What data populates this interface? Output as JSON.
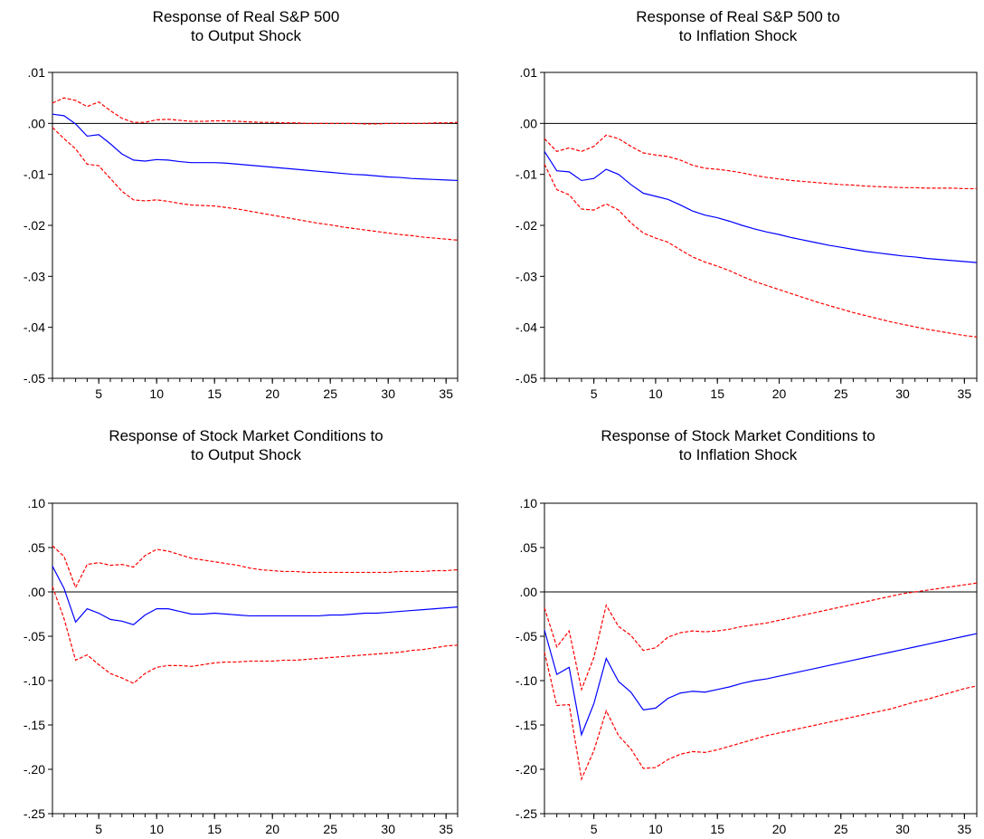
{
  "chart_data": [
    {
      "type": "line",
      "title_lines": [
        "Response of Real S&P 500",
        "to Output Shock"
      ],
      "xlim": [
        1,
        36
      ],
      "ylim": [
        -0.05,
        0.01
      ],
      "xticks": [
        5,
        10,
        15,
        20,
        25,
        30,
        35
      ],
      "xtick_labels": [
        "5",
        "10",
        "15",
        "20",
        "25",
        "30",
        "35"
      ],
      "yticks": [
        0.01,
        0.0,
        -0.01,
        -0.02,
        -0.03,
        -0.04,
        -0.05
      ],
      "ytick_labels": [
        ".01",
        ".00",
        "-.01",
        "-.02",
        "-.03",
        "-.04",
        "-.05"
      ],
      "zero_line": true,
      "series": [
        {
          "style": "solid",
          "color": "#0000ff",
          "values": [
            0.0018,
            0.0015,
            -0.0001,
            -0.0025,
            -0.0022,
            -0.004,
            -0.006,
            -0.0072,
            -0.0074,
            -0.0071,
            -0.0072,
            -0.0075,
            -0.0077,
            -0.0077,
            -0.0077,
            -0.0078,
            -0.008,
            -0.0082,
            -0.0084,
            -0.0086,
            -0.0088,
            -0.009,
            -0.0092,
            -0.0094,
            -0.0096,
            -0.0098,
            -0.01,
            -0.0101,
            -0.0103,
            -0.0105,
            -0.0106,
            -0.0108,
            -0.0109,
            -0.011,
            -0.0111,
            -0.0112
          ]
        },
        {
          "style": "dashed",
          "color": "#ff0000",
          "values": [
            0.004,
            0.005,
            0.0045,
            0.0033,
            0.0042,
            0.0025,
            0.001,
            0.0002,
            0.0002,
            0.0007,
            0.0008,
            0.0006,
            0.0004,
            0.0004,
            0.0005,
            0.0005,
            0.0004,
            0.0003,
            0.0002,
            0.0002,
            0.0001,
            0.0001,
            0.0,
            0.0,
            0.0,
            0.0,
            0.0,
            -0.0001,
            -0.0001,
            0.0,
            0.0,
            0.0,
            0.0,
            0.0001,
            0.0001,
            0.0002
          ]
        },
        {
          "style": "dashed",
          "color": "#ff0000",
          "values": [
            -0.0008,
            -0.003,
            -0.005,
            -0.008,
            -0.0083,
            -0.0108,
            -0.0133,
            -0.015,
            -0.0152,
            -0.015,
            -0.0153,
            -0.0157,
            -0.016,
            -0.0161,
            -0.0162,
            -0.0165,
            -0.0168,
            -0.0172,
            -0.0176,
            -0.018,
            -0.0184,
            -0.0188,
            -0.0192,
            -0.0196,
            -0.0199,
            -0.0203,
            -0.0206,
            -0.0209,
            -0.0212,
            -0.0215,
            -0.0218,
            -0.022,
            -0.0223,
            -0.0225,
            -0.0227,
            -0.0229
          ]
        }
      ]
    },
    {
      "type": "line",
      "title_lines": [
        "Response of Real S&P 500 to",
        "to Inflation Shock"
      ],
      "xlim": [
        1,
        36
      ],
      "ylim": [
        -0.05,
        0.01
      ],
      "xticks": [
        5,
        10,
        15,
        20,
        25,
        30,
        35
      ],
      "xtick_labels": [
        "5",
        "10",
        "15",
        "20",
        "25",
        "30",
        "35"
      ],
      "yticks": [
        0.01,
        0.0,
        -0.01,
        -0.02,
        -0.03,
        -0.04,
        -0.05
      ],
      "ytick_labels": [
        ".01",
        ".00",
        "-.01",
        "-.02",
        "-.03",
        "-.04",
        "-.05"
      ],
      "zero_line": true,
      "series": [
        {
          "style": "solid",
          "color": "#0000ff",
          "values": [
            -0.0055,
            -0.0093,
            -0.0095,
            -0.0112,
            -0.0108,
            -0.009,
            -0.01,
            -0.012,
            -0.0137,
            -0.0143,
            -0.0149,
            -0.016,
            -0.0172,
            -0.018,
            -0.0185,
            -0.0192,
            -0.02,
            -0.0207,
            -0.0213,
            -0.0218,
            -0.0224,
            -0.0229,
            -0.0234,
            -0.0239,
            -0.0243,
            -0.0247,
            -0.0251,
            -0.0254,
            -0.0257,
            -0.026,
            -0.0262,
            -0.0265,
            -0.0267,
            -0.0269,
            -0.0271,
            -0.0273
          ]
        },
        {
          "style": "dashed",
          "color": "#ff0000",
          "values": [
            -0.003,
            -0.0055,
            -0.0048,
            -0.0055,
            -0.0045,
            -0.0023,
            -0.003,
            -0.0045,
            -0.0058,
            -0.0062,
            -0.0065,
            -0.0072,
            -0.0082,
            -0.0088,
            -0.009,
            -0.0093,
            -0.0097,
            -0.0102,
            -0.0106,
            -0.0109,
            -0.0112,
            -0.0114,
            -0.0116,
            -0.0118,
            -0.012,
            -0.0121,
            -0.0123,
            -0.0124,
            -0.0125,
            -0.0126,
            -0.0126,
            -0.0127,
            -0.0127,
            -0.0127,
            -0.0128,
            -0.0128
          ]
        },
        {
          "style": "dashed",
          "color": "#ff0000",
          "values": [
            -0.008,
            -0.013,
            -0.014,
            -0.0168,
            -0.017,
            -0.0158,
            -0.017,
            -0.0195,
            -0.0215,
            -0.0225,
            -0.0233,
            -0.0248,
            -0.0262,
            -0.0272,
            -0.028,
            -0.0289,
            -0.03,
            -0.031,
            -0.0318,
            -0.0326,
            -0.0334,
            -0.0342,
            -0.035,
            -0.0357,
            -0.0364,
            -0.0371,
            -0.0377,
            -0.0383,
            -0.0389,
            -0.0394,
            -0.0399,
            -0.0404,
            -0.0408,
            -0.0412,
            -0.0416,
            -0.0419
          ]
        }
      ]
    },
    {
      "type": "line",
      "title_lines": [
        "Response of Stock Market Conditions to",
        "to Output Shock"
      ],
      "xlim": [
        1,
        36
      ],
      "ylim": [
        -0.25,
        0.1
      ],
      "xticks": [
        5,
        10,
        15,
        20,
        25,
        30,
        35
      ],
      "xtick_labels": [
        "5",
        "10",
        "15",
        "20",
        "25",
        "30",
        "35"
      ],
      "yticks": [
        0.1,
        0.05,
        0.0,
        -0.05,
        -0.1,
        -0.15,
        -0.2,
        -0.25
      ],
      "ytick_labels": [
        ".10",
        ".05",
        ".00",
        "-.05",
        "-.10",
        "-.15",
        "-.20",
        "-.25"
      ],
      "zero_line": true,
      "series": [
        {
          "style": "solid",
          "color": "#0000ff",
          "values": [
            0.029,
            0.004,
            -0.034,
            -0.019,
            -0.024,
            -0.031,
            -0.033,
            -0.037,
            -0.026,
            -0.019,
            -0.019,
            -0.022,
            -0.025,
            -0.025,
            -0.024,
            -0.025,
            -0.026,
            -0.027,
            -0.027,
            -0.027,
            -0.027,
            -0.027,
            -0.027,
            -0.027,
            -0.026,
            -0.026,
            -0.025,
            -0.024,
            -0.024,
            -0.023,
            -0.022,
            -0.021,
            -0.02,
            -0.019,
            -0.018,
            -0.017
          ]
        },
        {
          "style": "dashed",
          "color": "#ff0000",
          "values": [
            0.052,
            0.04,
            0.005,
            0.031,
            0.033,
            0.03,
            0.031,
            0.028,
            0.041,
            0.048,
            0.046,
            0.042,
            0.038,
            0.036,
            0.034,
            0.032,
            0.03,
            0.027,
            0.025,
            0.024,
            0.023,
            0.023,
            0.022,
            0.022,
            0.022,
            0.022,
            0.022,
            0.022,
            0.022,
            0.022,
            0.023,
            0.023,
            0.023,
            0.024,
            0.024,
            0.025
          ]
        },
        {
          "style": "dashed",
          "color": "#ff0000",
          "values": [
            0.006,
            -0.03,
            -0.077,
            -0.071,
            -0.082,
            -0.092,
            -0.097,
            -0.103,
            -0.092,
            -0.085,
            -0.083,
            -0.083,
            -0.084,
            -0.082,
            -0.08,
            -0.079,
            -0.079,
            -0.078,
            -0.078,
            -0.078,
            -0.077,
            -0.077,
            -0.076,
            -0.075,
            -0.074,
            -0.073,
            -0.072,
            -0.071,
            -0.07,
            -0.069,
            -0.068,
            -0.066,
            -0.065,
            -0.063,
            -0.061,
            -0.06
          ]
        }
      ]
    },
    {
      "type": "line",
      "title_lines": [
        "Response of Stock Market Conditions to",
        "to Inflation Shock"
      ],
      "xlim": [
        1,
        36
      ],
      "ylim": [
        -0.25,
        0.1
      ],
      "xticks": [
        5,
        10,
        15,
        20,
        25,
        30,
        35
      ],
      "xtick_labels": [
        "5",
        "10",
        "15",
        "20",
        "25",
        "30",
        "35"
      ],
      "yticks": [
        0.1,
        0.05,
        0.0,
        -0.05,
        -0.1,
        -0.15,
        -0.2,
        -0.25
      ],
      "ytick_labels": [
        ".10",
        ".05",
        ".00",
        "-.05",
        "-.10",
        "-.15",
        "-.20",
        "-.25"
      ],
      "zero_line": true,
      "series": [
        {
          "style": "solid",
          "color": "#0000ff",
          "values": [
            -0.043,
            -0.093,
            -0.085,
            -0.161,
            -0.126,
            -0.075,
            -0.101,
            -0.113,
            -0.133,
            -0.131,
            -0.12,
            -0.114,
            -0.112,
            -0.113,
            -0.11,
            -0.107,
            -0.103,
            -0.1,
            -0.098,
            -0.095,
            -0.092,
            -0.089,
            -0.086,
            -0.083,
            -0.08,
            -0.077,
            -0.074,
            -0.071,
            -0.068,
            -0.065,
            -0.062,
            -0.059,
            -0.056,
            -0.053,
            -0.05,
            -0.047
          ]
        },
        {
          "style": "dashed",
          "color": "#ff0000",
          "values": [
            -0.018,
            -0.062,
            -0.044,
            -0.11,
            -0.074,
            -0.015,
            -0.039,
            -0.049,
            -0.066,
            -0.063,
            -0.051,
            -0.046,
            -0.044,
            -0.045,
            -0.044,
            -0.042,
            -0.039,
            -0.037,
            -0.035,
            -0.032,
            -0.029,
            -0.026,
            -0.023,
            -0.02,
            -0.017,
            -0.014,
            -0.011,
            -0.008,
            -0.005,
            -0.002,
            0.0,
            0.002,
            0.004,
            0.006,
            0.008,
            0.01
          ]
        },
        {
          "style": "dashed",
          "color": "#ff0000",
          "values": [
            -0.068,
            -0.128,
            -0.127,
            -0.211,
            -0.179,
            -0.134,
            -0.162,
            -0.177,
            -0.199,
            -0.198,
            -0.189,
            -0.183,
            -0.18,
            -0.181,
            -0.178,
            -0.174,
            -0.17,
            -0.166,
            -0.162,
            -0.159,
            -0.156,
            -0.153,
            -0.15,
            -0.147,
            -0.144,
            -0.141,
            -0.138,
            -0.135,
            -0.132,
            -0.128,
            -0.124,
            -0.121,
            -0.117,
            -0.113,
            -0.109,
            -0.106
          ]
        }
      ]
    }
  ]
}
